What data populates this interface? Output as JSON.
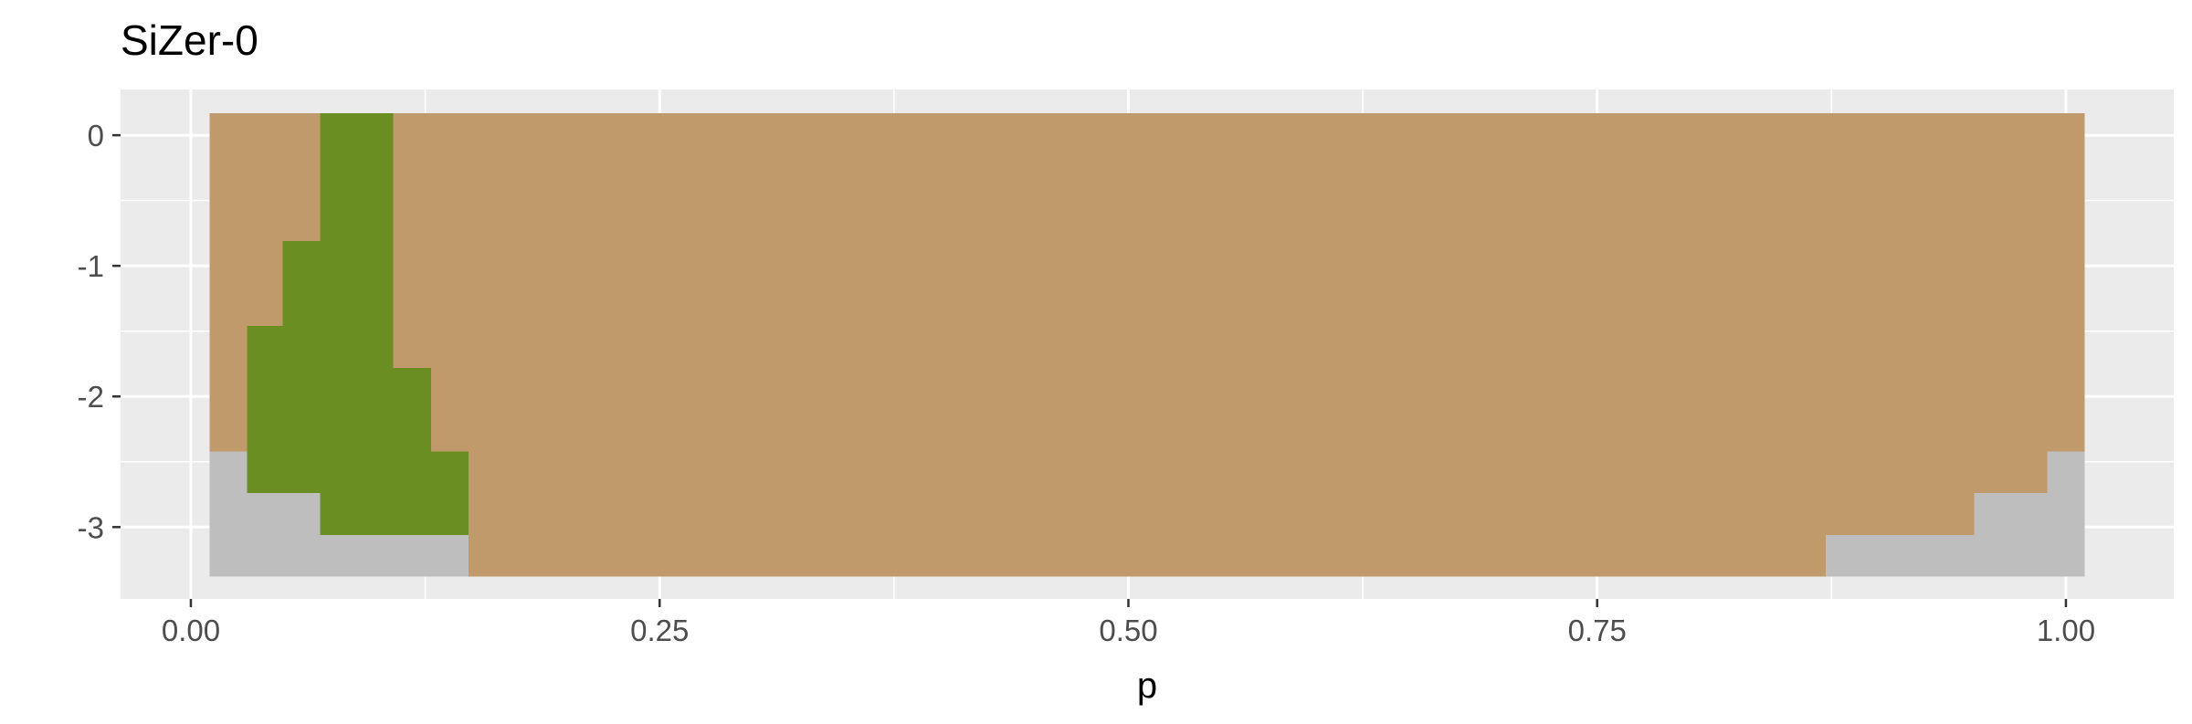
{
  "chart_data": {
    "type": "heatmap",
    "title": "SiZer-0",
    "xlabel": "p",
    "ylabel": "",
    "xlim": [
      -0.0375,
      1.0575
    ],
    "ylim": [
      -3.55,
      0.35
    ],
    "x_ticks": [
      0,
      0.25,
      0.5,
      0.75,
      1
    ],
    "x_tick_labels": [
      "0.00",
      "0.25",
      "0.50",
      "0.75",
      "1.00"
    ],
    "y_ticks": [
      0,
      -1,
      -2,
      -3
    ],
    "y_tick_labels": [
      "0",
      "-1",
      "-2",
      "-3"
    ],
    "grid": true,
    "legend": "none",
    "colors": {
      "panel_background": "#ebebeb",
      "grid_line": "#ffffff",
      "not_significant": "#c19a6b",
      "significant_increase": "#6b8e23",
      "insufficient_data": "#bebebe",
      "tick_label": "#4d4d4d",
      "tick_mark": "#333333"
    },
    "cells": [
      {
        "x0": 0.01,
        "x1": 1.01,
        "y0": -3.38,
        "y1": 0.17,
        "category": "not_significant"
      },
      {
        "x0": 0.069,
        "x1": 0.108,
        "y0": -3.06,
        "y1": 0.17,
        "category": "significant_increase"
      },
      {
        "x0": 0.049,
        "x1": 0.069,
        "y0": -2.74,
        "y1": -0.81,
        "category": "significant_increase"
      },
      {
        "x0": 0.03,
        "x1": 0.049,
        "y0": -2.74,
        "y1": -1.46,
        "category": "significant_increase"
      },
      {
        "x0": 0.108,
        "x1": 0.128,
        "y0": -3.06,
        "y1": -1.78,
        "category": "significant_increase"
      },
      {
        "x0": 0.128,
        "x1": 0.148,
        "y0": -3.06,
        "y1": -2.42,
        "category": "significant_increase"
      },
      {
        "x0": 0.01,
        "x1": 0.03,
        "y0": -3.38,
        "y1": -2.42,
        "category": "insufficient_data"
      },
      {
        "x0": 0.03,
        "x1": 0.069,
        "y0": -3.38,
        "y1": -2.74,
        "category": "insufficient_data"
      },
      {
        "x0": 0.069,
        "x1": 0.148,
        "y0": -3.38,
        "y1": -3.06,
        "category": "insufficient_data"
      },
      {
        "x0": 0.872,
        "x1": 0.951,
        "y0": -3.38,
        "y1": -3.06,
        "category": "insufficient_data"
      },
      {
        "x0": 0.951,
        "x1": 0.99,
        "y0": -3.38,
        "y1": -2.74,
        "category": "insufficient_data"
      },
      {
        "x0": 0.99,
        "x1": 1.01,
        "y0": -3.38,
        "y1": -2.42,
        "category": "insufficient_data"
      }
    ]
  }
}
